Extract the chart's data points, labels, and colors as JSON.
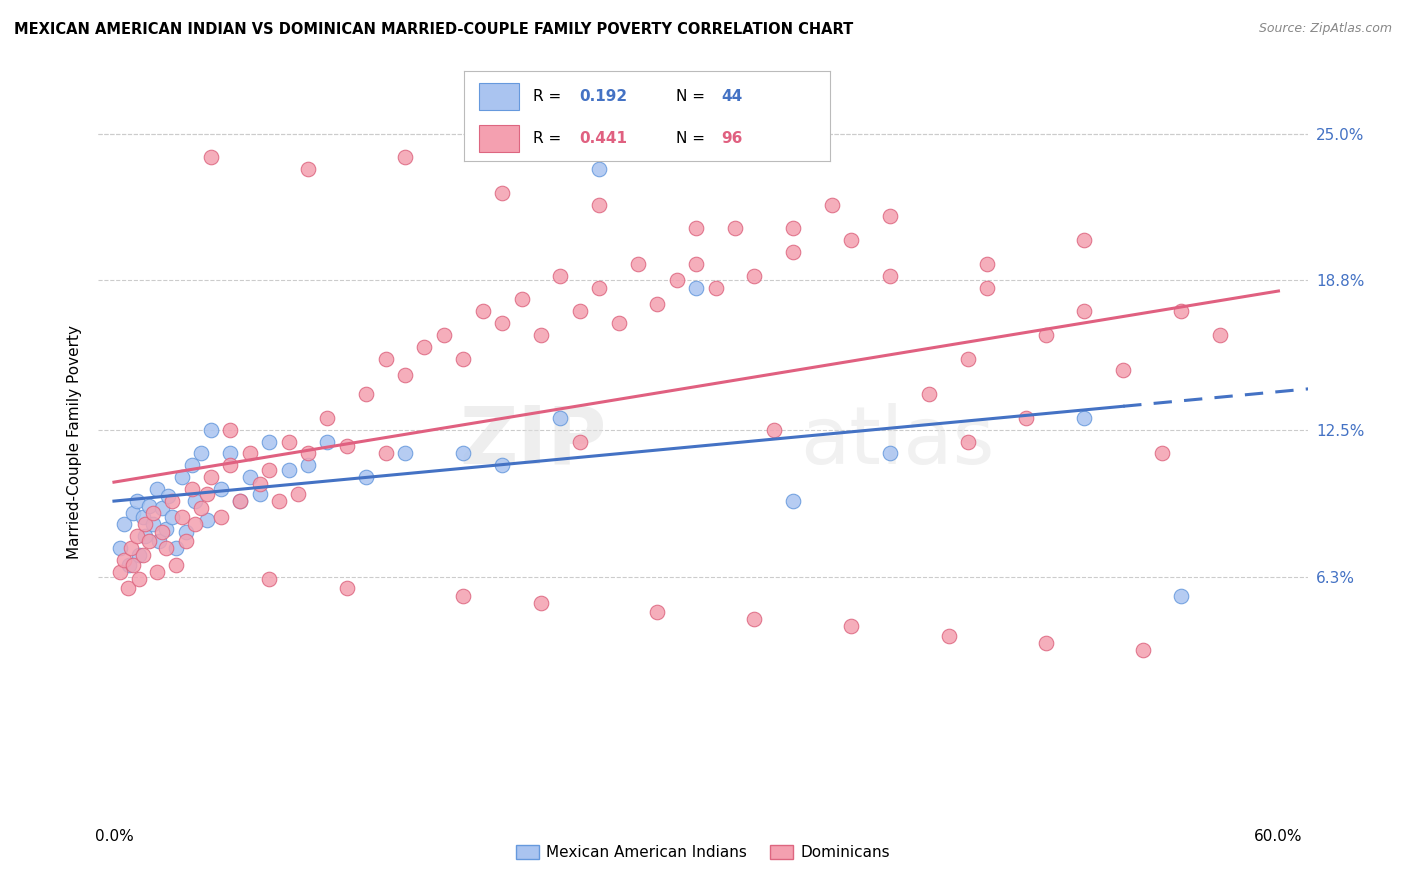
{
  "title": "MEXICAN AMERICAN INDIAN VS DOMINICAN MARRIED-COUPLE FAMILY POVERTY CORRELATION CHART",
  "source": "Source: ZipAtlas.com",
  "ylabel": "Married-Couple Family Poverty",
  "ytick_labels": [
    "6.3%",
    "12.5%",
    "18.8%",
    "25.0%"
  ],
  "ytick_values": [
    0.063,
    0.125,
    0.188,
    0.25
  ],
  "xmin": 0.0,
  "xmax": 0.6,
  "ymin": -0.04,
  "ymax": 0.28,
  "watermark": "ZIPatlas",
  "blue_color": "#aac4f0",
  "blue_edge": "#6699dd",
  "blue_line": "#4472c4",
  "pink_color": "#f4a0b0",
  "pink_edge": "#dd6680",
  "pink_line": "#e06080",
  "R_blue": "0.192",
  "N_blue": "44",
  "R_pink": "0.441",
  "N_pink": "96",
  "blue_x": [
    0.003,
    0.005,
    0.008,
    0.01,
    0.012,
    0.013,
    0.015,
    0.016,
    0.018,
    0.02,
    0.022,
    0.023,
    0.025,
    0.027,
    0.028,
    0.03,
    0.032,
    0.035,
    0.037,
    0.04,
    0.042,
    0.045,
    0.048,
    0.05,
    0.055,
    0.06,
    0.065,
    0.07,
    0.075,
    0.08,
    0.09,
    0.1,
    0.11,
    0.13,
    0.15,
    0.18,
    0.2,
    0.23,
    0.25,
    0.3,
    0.35,
    0.4,
    0.5,
    0.55
  ],
  "blue_y": [
    0.075,
    0.085,
    0.068,
    0.09,
    0.095,
    0.072,
    0.088,
    0.08,
    0.093,
    0.085,
    0.1,
    0.078,
    0.092,
    0.083,
    0.097,
    0.088,
    0.075,
    0.105,
    0.082,
    0.11,
    0.095,
    0.115,
    0.087,
    0.125,
    0.1,
    0.115,
    0.095,
    0.105,
    0.098,
    0.12,
    0.108,
    0.11,
    0.12,
    0.105,
    0.115,
    0.115,
    0.11,
    0.13,
    0.235,
    0.185,
    0.095,
    0.115,
    0.13,
    0.055
  ],
  "pink_x": [
    0.003,
    0.005,
    0.007,
    0.009,
    0.01,
    0.012,
    0.013,
    0.015,
    0.016,
    0.018,
    0.02,
    0.022,
    0.025,
    0.027,
    0.03,
    0.032,
    0.035,
    0.037,
    0.04,
    0.042,
    0.045,
    0.048,
    0.05,
    0.055,
    0.06,
    0.065,
    0.07,
    0.075,
    0.08,
    0.085,
    0.09,
    0.095,
    0.1,
    0.11,
    0.12,
    0.13,
    0.14,
    0.15,
    0.16,
    0.17,
    0.18,
    0.19,
    0.2,
    0.21,
    0.22,
    0.23,
    0.24,
    0.25,
    0.26,
    0.27,
    0.28,
    0.29,
    0.3,
    0.31,
    0.32,
    0.33,
    0.35,
    0.37,
    0.38,
    0.4,
    0.42,
    0.44,
    0.45,
    0.47,
    0.48,
    0.5,
    0.52,
    0.55,
    0.57,
    0.05,
    0.1,
    0.15,
    0.2,
    0.25,
    0.3,
    0.35,
    0.4,
    0.45,
    0.5,
    0.08,
    0.12,
    0.18,
    0.22,
    0.28,
    0.33,
    0.38,
    0.43,
    0.48,
    0.53,
    0.06,
    0.14,
    0.24,
    0.34,
    0.44,
    0.54
  ],
  "pink_y": [
    0.065,
    0.07,
    0.058,
    0.075,
    0.068,
    0.08,
    0.062,
    0.072,
    0.085,
    0.078,
    0.09,
    0.065,
    0.082,
    0.075,
    0.095,
    0.068,
    0.088,
    0.078,
    0.1,
    0.085,
    0.092,
    0.098,
    0.105,
    0.088,
    0.11,
    0.095,
    0.115,
    0.102,
    0.108,
    0.095,
    0.12,
    0.098,
    0.115,
    0.13,
    0.118,
    0.14,
    0.155,
    0.148,
    0.16,
    0.165,
    0.155,
    0.175,
    0.17,
    0.18,
    0.165,
    0.19,
    0.175,
    0.185,
    0.17,
    0.195,
    0.178,
    0.188,
    0.195,
    0.185,
    0.21,
    0.19,
    0.21,
    0.22,
    0.205,
    0.215,
    0.14,
    0.155,
    0.195,
    0.13,
    0.165,
    0.205,
    0.15,
    0.175,
    0.165,
    0.24,
    0.235,
    0.24,
    0.225,
    0.22,
    0.21,
    0.2,
    0.19,
    0.185,
    0.175,
    0.062,
    0.058,
    0.055,
    0.052,
    0.048,
    0.045,
    0.042,
    0.038,
    0.035,
    0.032,
    0.125,
    0.115,
    0.12,
    0.125,
    0.12,
    0.115
  ]
}
